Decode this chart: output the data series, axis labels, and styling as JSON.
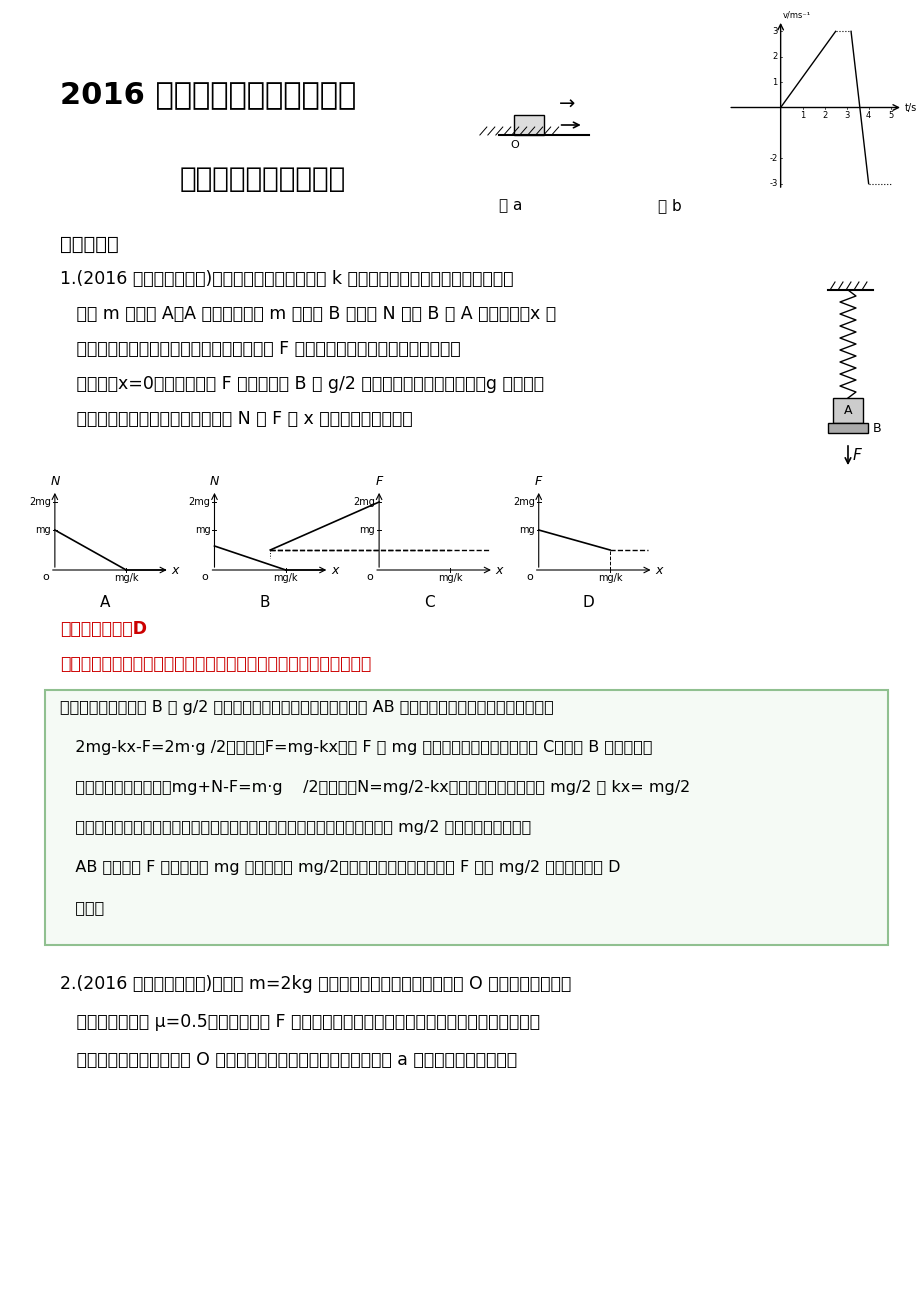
{
  "title1": "2016 高考最新原创模拟题分类",
  "title2": "专题三、牛顿运动定律",
  "section1": "一．选择题",
  "q1_text_lines": [
    "1.(2016 吉林长春市二模)如图所示，一劲度系数为 k 的轻质弹簧，上端固定，下端连一质",
    "   量为 m 的物块 A，A 放在质量也为 m 的托盘 B 上，以 N 表示 B 对 A 的作用力，x 表",
    "   示弹簧的伸长量。初始时，在竖直向上的力 F 作用下系统处于静止，且弹簧处于自",
    "   然状态（x=0）。现改变力 F 的大小，使 B 以 g/2 的加速度匀加速向下运动（g 为重力加",
    "   速度，空气阻力不计），此过程中 N 或 F 随 x 变化的图象正确的是"
  ],
  "answer_label": "【参考答案】．D",
  "intention_label": "【命题意图】本题考查了牛顿运动定律、力图象及其相关的知识点。",
  "solution_lines": [
    "【解题思路】对题述 B 以 g/2 的加速度匀加速向下运动过程，选择 AB 整体为研究对象，由牛顿第二定律，",
    "   2mg-kx-F=2m·g /2，解得：F=mg-kx。即 F 从 mg 开始线性减小，可排除图象 C。选择 B 作为研究对",
    "   象，由牛顿第二定律，mg+N-F=m·g    /2，解得：N=mg/2-kx。当弹簧的弹力增大到 mg/2 即 kx= mg/2",
    "   时，物块和托盘间的压力为零，在此之前，二者之间的压力由开始运动时的 mg/2 线性减小到零，选项",
    "   AB 错误。力 F 由开始时的 mg 线性减小到 mg/2；此后托盘与物块分离，力 F 保持 mg/2 不变，故选项 D",
    "   正确。"
  ],
  "q2_text_lines": [
    "2.(2016 江西南昌市一模)质量为 m=2kg 的物块静止放置在粗糙水平地面 O 处，物块与水平面",
    "   间的动摩擦因数 μ=0.5，在水平拉力 F 作用下物块由静止开始沿水平地面向右运动，经过一段",
    "   时间后，物块回到出发点 O 处，取水平向右为速度的正方向，如图 a 所示，物块运动过程中"
  ],
  "bg_color": "#ffffff",
  "text_color": "#000000",
  "red_color": "#cc0000",
  "green_color": "#006400",
  "box_border_color": "#90c090"
}
